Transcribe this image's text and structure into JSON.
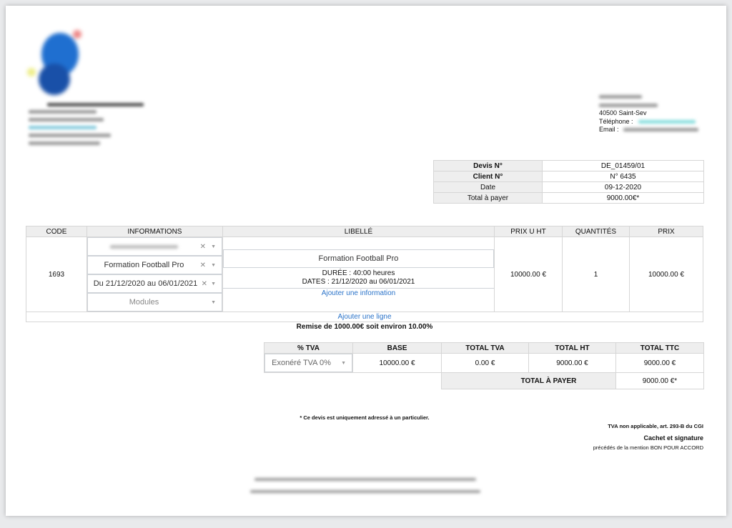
{
  "client": {
    "city": "40500 Saint-Sev",
    "phone_label": "Téléphone :",
    "email_label": "Email :"
  },
  "meta": [
    {
      "label": "Devis N°",
      "value": "DE_01459/01",
      "bold": true
    },
    {
      "label": "Client N°",
      "value": "N° 6435",
      "bold": true
    },
    {
      "label": "Date",
      "value": "09-12-2020"
    },
    {
      "label": "Total à payer",
      "value": "9000.00€*"
    }
  ],
  "lines": {
    "headers": [
      "CODE",
      "INFORMATIONS",
      "LIBELLÉ",
      "PRIX U HT",
      "QUANTITÉS",
      "PRIX"
    ],
    "row": {
      "code": "1693",
      "selects": [
        "Formation Football Pro",
        "Du 21/12/2020 au 06/01/2021"
      ],
      "modules_placeholder": "Modules",
      "title": "Formation Football Pro",
      "duration": "DURÉE : 40:00 heures",
      "dates": "DATES : 21/12/2020 au 06/01/2021",
      "add_info": "Ajouter une information",
      "unit_price": "10000.00 €",
      "quantity": "1",
      "price": "10000.00 €"
    },
    "add_line": "Ajouter une ligne",
    "discount": "Remise de 1000.00€ soit environ 10.00%"
  },
  "tva": {
    "headers": [
      "% TVA",
      "BASE",
      "TOTAL TVA",
      "TOTAL HT",
      "TOTAL TTC"
    ],
    "rate": "Exonéré TVA 0%",
    "base": "10000.00 €",
    "total_tva": "0.00 €",
    "total_ht": "9000.00 €",
    "total_ttc": "9000.00 €",
    "total_label": "TOTAL À PAYER",
    "total_value": "9000.00 €*"
  },
  "notes": {
    "particulier": "* Ce devis est uniquement adressé à un particulier.",
    "tva_note": "TVA non applicable, art. 293-B du CGI",
    "signature": "Cachet et signature",
    "mention": "précédés de la mention BON POUR ACCORD"
  },
  "colors": {
    "link": "#2a73c9",
    "header_bg": "#eeeeee"
  }
}
